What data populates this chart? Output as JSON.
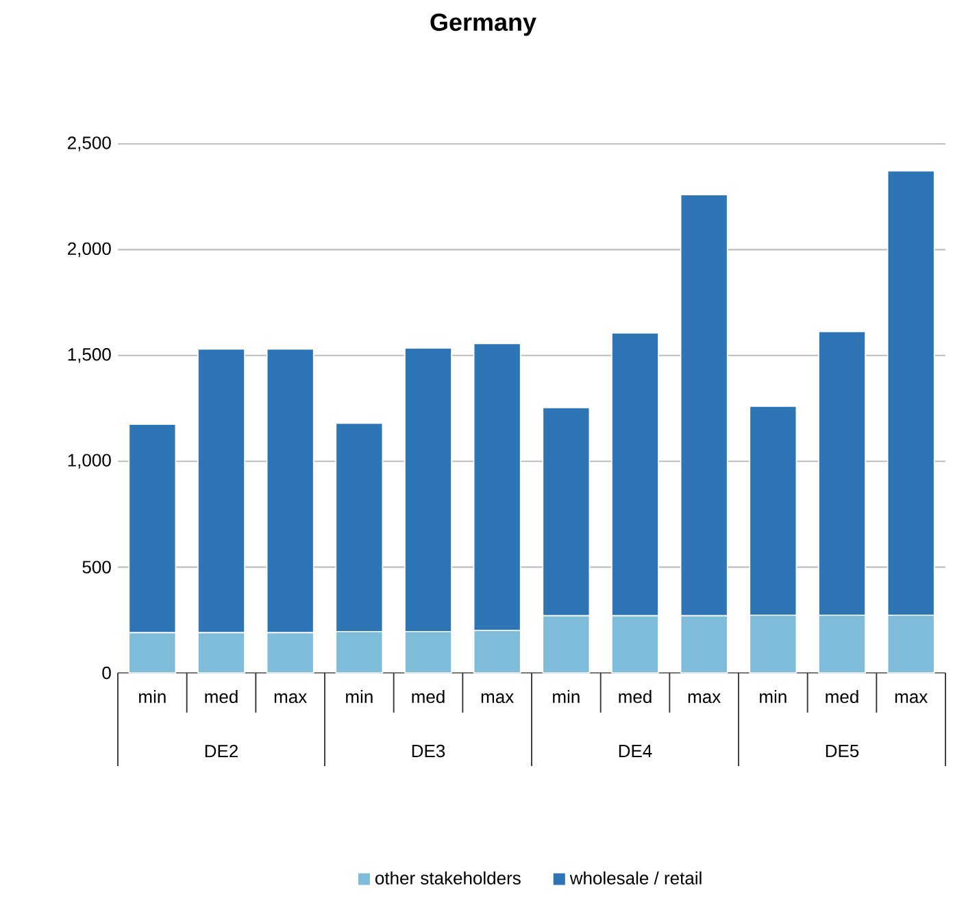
{
  "chart_data": {
    "type": "bar",
    "title": "Germany",
    "stacked": true,
    "categories": [
      "min",
      "med",
      "max",
      "min",
      "med",
      "max",
      "min",
      "med",
      "max",
      "min",
      "med",
      "max"
    ],
    "annotations": [
      "DE2",
      "DE3",
      "DE4",
      "DE5"
    ],
    "series": [
      {
        "name": "other stakeholders",
        "color": "#7fbcd9",
        "values": [
          190,
          190,
          190,
          195,
          195,
          200,
          270,
          270,
          270,
          273,
          273,
          273
        ]
      },
      {
        "name": "wholesale / retail",
        "color": "#2e75b5",
        "values": [
          985,
          1340,
          1340,
          985,
          1340,
          1356,
          983,
          1336,
          1990,
          987,
          1340,
          2099
        ]
      }
    ],
    "ylim": [
      0,
      2500
    ],
    "yticks": [
      0,
      500,
      {
        "value": 1000,
        "label": "1,000"
      },
      {
        "value": 1500,
        "label": "1,500"
      },
      {
        "value": 2000,
        "label": "2,000"
      },
      {
        "value": 2500,
        "label": "2,500"
      }
    ],
    "grid": "y",
    "legend": "bottom"
  }
}
